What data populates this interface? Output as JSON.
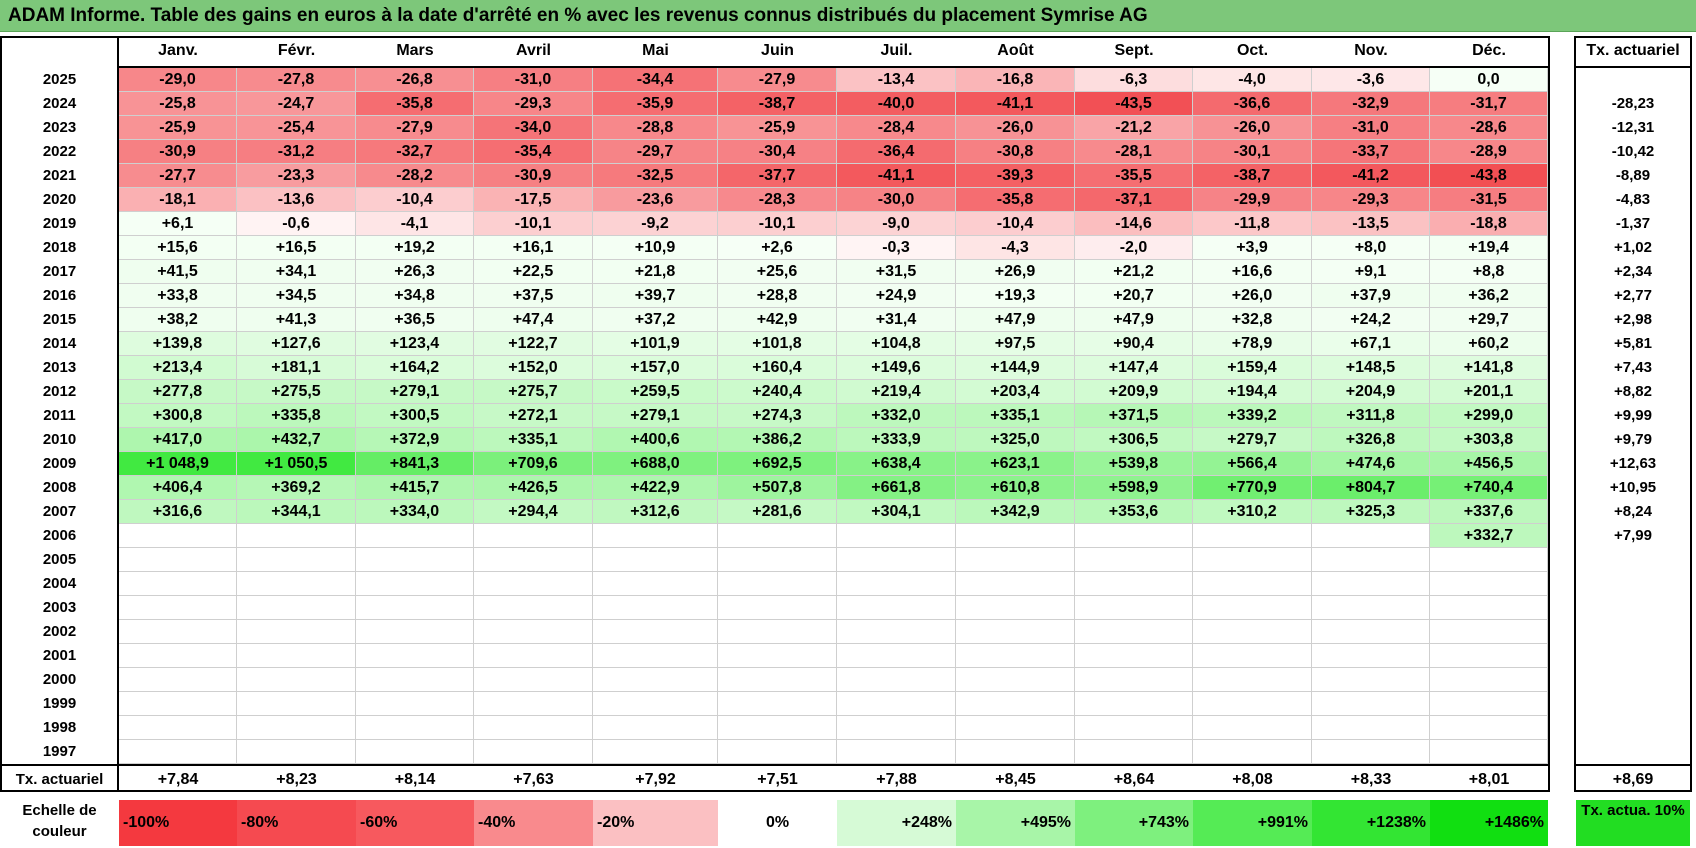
{
  "title": "ADAM Informe. Table des gains en euros à la date d'arrêté en % avec les revenus connus distribués du placement Symrise AG",
  "months": [
    "Janv.",
    "Févr.",
    "Mars",
    "Avril",
    "Mai",
    "Juin",
    "Juil.",
    "Août",
    "Sept.",
    "Oct.",
    "Nov.",
    "Déc."
  ],
  "rate_header": "Tx. actuariel",
  "rows": [
    {
      "year": "2025",
      "values": [
        "-29,0",
        "-27,8",
        "-26,8",
        "-31,0",
        "-34,4",
        "-27,9",
        "-13,4",
        "-16,8",
        "-6,3",
        "-4,0",
        "-3,6",
        "0,0"
      ],
      "rate": ""
    },
    {
      "year": "2024",
      "values": [
        "-25,8",
        "-24,7",
        "-35,8",
        "-29,3",
        "-35,9",
        "-38,7",
        "-40,0",
        "-41,1",
        "-43,5",
        "-36,6",
        "-32,9",
        "-31,7"
      ],
      "rate": "-28,23"
    },
    {
      "year": "2023",
      "values": [
        "-25,9",
        "-25,4",
        "-27,9",
        "-34,0",
        "-28,8",
        "-25,9",
        "-28,4",
        "-26,0",
        "-21,2",
        "-26,0",
        "-31,0",
        "-28,6"
      ],
      "rate": "-12,31"
    },
    {
      "year": "2022",
      "values": [
        "-30,9",
        "-31,2",
        "-32,7",
        "-35,4",
        "-29,7",
        "-30,4",
        "-36,4",
        "-30,8",
        "-28,1",
        "-30,1",
        "-33,7",
        "-28,9"
      ],
      "rate": "-10,42"
    },
    {
      "year": "2021",
      "values": [
        "-27,7",
        "-23,3",
        "-28,2",
        "-30,9",
        "-32,5",
        "-37,7",
        "-41,1",
        "-39,3",
        "-35,5",
        "-38,7",
        "-41,2",
        "-43,8"
      ],
      "rate": "-8,89"
    },
    {
      "year": "2020",
      "values": [
        "-18,1",
        "-13,6",
        "-10,4",
        "-17,5",
        "-23,6",
        "-28,3",
        "-30,0",
        "-35,8",
        "-37,1",
        "-29,9",
        "-29,3",
        "-31,5"
      ],
      "rate": "-4,83"
    },
    {
      "year": "2019",
      "values": [
        "+6,1",
        "-0,6",
        "-4,1",
        "-10,1",
        "-9,2",
        "-10,1",
        "-9,0",
        "-10,4",
        "-14,6",
        "-11,8",
        "-13,5",
        "-18,8"
      ],
      "rate": "-1,37"
    },
    {
      "year": "2018",
      "values": [
        "+15,6",
        "+16,5",
        "+19,2",
        "+16,1",
        "+10,9",
        "+2,6",
        "-0,3",
        "-4,3",
        "-2,0",
        "+3,9",
        "+8,0",
        "+19,4"
      ],
      "rate": "+1,02"
    },
    {
      "year": "2017",
      "values": [
        "+41,5",
        "+34,1",
        "+26,3",
        "+22,5",
        "+21,8",
        "+25,6",
        "+31,5",
        "+26,9",
        "+21,2",
        "+16,6",
        "+9,1",
        "+8,8"
      ],
      "rate": "+2,34"
    },
    {
      "year": "2016",
      "values": [
        "+33,8",
        "+34,5",
        "+34,8",
        "+37,5",
        "+39,7",
        "+28,8",
        "+24,9",
        "+19,3",
        "+20,7",
        "+26,0",
        "+37,9",
        "+36,2"
      ],
      "rate": "+2,77"
    },
    {
      "year": "2015",
      "values": [
        "+38,2",
        "+41,3",
        "+36,5",
        "+47,4",
        "+37,2",
        "+42,9",
        "+31,4",
        "+47,9",
        "+47,9",
        "+32,8",
        "+24,2",
        "+29,7"
      ],
      "rate": "+2,98"
    },
    {
      "year": "2014",
      "values": [
        "+139,8",
        "+127,6",
        "+123,4",
        "+122,7",
        "+101,9",
        "+101,8",
        "+104,8",
        "+97,5",
        "+90,4",
        "+78,9",
        "+67,1",
        "+60,2"
      ],
      "rate": "+5,81"
    },
    {
      "year": "2013",
      "values": [
        "+213,4",
        "+181,1",
        "+164,2",
        "+152,0",
        "+157,0",
        "+160,4",
        "+149,6",
        "+144,9",
        "+147,4",
        "+159,4",
        "+148,5",
        "+141,8"
      ],
      "rate": "+7,43"
    },
    {
      "year": "2012",
      "values": [
        "+277,8",
        "+275,5",
        "+279,1",
        "+275,7",
        "+259,5",
        "+240,4",
        "+219,4",
        "+203,4",
        "+209,9",
        "+194,4",
        "+204,9",
        "+201,1"
      ],
      "rate": "+8,82"
    },
    {
      "year": "2011",
      "values": [
        "+300,8",
        "+335,8",
        "+300,5",
        "+272,1",
        "+279,1",
        "+274,3",
        "+332,0",
        "+335,1",
        "+371,5",
        "+339,2",
        "+311,8",
        "+299,0"
      ],
      "rate": "+9,99"
    },
    {
      "year": "2010",
      "values": [
        "+417,0",
        "+432,7",
        "+372,9",
        "+335,1",
        "+400,6",
        "+386,2",
        "+333,9",
        "+325,0",
        "+306,5",
        "+279,7",
        "+326,8",
        "+303,8"
      ],
      "rate": "+9,79"
    },
    {
      "year": "2009",
      "values": [
        "+1 048,9",
        "+1 050,5",
        "+841,3",
        "+709,6",
        "+688,0",
        "+692,5",
        "+638,4",
        "+623,1",
        "+539,8",
        "+566,4",
        "+474,6",
        "+456,5"
      ],
      "rate": "+12,63"
    },
    {
      "year": "2008",
      "values": [
        "+406,4",
        "+369,2",
        "+415,7",
        "+426,5",
        "+422,9",
        "+507,8",
        "+661,8",
        "+610,8",
        "+598,9",
        "+770,9",
        "+804,7",
        "+740,4"
      ],
      "rate": "+10,95"
    },
    {
      "year": "2007",
      "values": [
        "+316,6",
        "+344,1",
        "+334,0",
        "+294,4",
        "+312,6",
        "+281,6",
        "+304,1",
        "+342,9",
        "+353,6",
        "+310,2",
        "+325,3",
        "+337,6"
      ],
      "rate": "+8,24"
    },
    {
      "year": "2006",
      "values": [
        "",
        "",
        "",
        "",
        "",
        "",
        "",
        "",
        "",
        "",
        "",
        "+332,7"
      ],
      "rate": "+7,99"
    },
    {
      "year": "2005",
      "values": [
        "",
        "",
        "",
        "",
        "",
        "",
        "",
        "",
        "",
        "",
        "",
        ""
      ],
      "rate": ""
    },
    {
      "year": "2004",
      "values": [
        "",
        "",
        "",
        "",
        "",
        "",
        "",
        "",
        "",
        "",
        "",
        ""
      ],
      "rate": ""
    },
    {
      "year": "2003",
      "values": [
        "",
        "",
        "",
        "",
        "",
        "",
        "",
        "",
        "",
        "",
        "",
        ""
      ],
      "rate": ""
    },
    {
      "year": "2002",
      "values": [
        "",
        "",
        "",
        "",
        "",
        "",
        "",
        "",
        "",
        "",
        "",
        ""
      ],
      "rate": ""
    },
    {
      "year": "2001",
      "values": [
        "",
        "",
        "",
        "",
        "",
        "",
        "",
        "",
        "",
        "",
        "",
        ""
      ],
      "rate": ""
    },
    {
      "year": "2000",
      "values": [
        "",
        "",
        "",
        "",
        "",
        "",
        "",
        "",
        "",
        "",
        "",
        ""
      ],
      "rate": ""
    },
    {
      "year": "1999",
      "values": [
        "",
        "",
        "",
        "",
        "",
        "",
        "",
        "",
        "",
        "",
        "",
        ""
      ],
      "rate": ""
    },
    {
      "year": "1998",
      "values": [
        "",
        "",
        "",
        "",
        "",
        "",
        "",
        "",
        "",
        "",
        "",
        ""
      ],
      "rate": ""
    },
    {
      "year": "1997",
      "values": [
        "",
        "",
        "",
        "",
        "",
        "",
        "",
        "",
        "",
        "",
        "",
        ""
      ],
      "rate": ""
    }
  ],
  "footer": {
    "label": "Tx. actuariel",
    "values": [
      "+7,84",
      "+8,23",
      "+8,14",
      "+7,63",
      "+7,92",
      "+7,51",
      "+7,88",
      "+8,45",
      "+8,64",
      "+8,08",
      "+8,33",
      "+8,01"
    ],
    "rate": "+8,69"
  },
  "scale": {
    "label": "Echelle de couleur",
    "items": [
      {
        "text": "-100%",
        "color": "#f4393f"
      },
      {
        "text": "-80%",
        "color": "#f54a50"
      },
      {
        "text": "-60%",
        "color": "#f7595e"
      },
      {
        "text": "-40%",
        "color": "#f98a8d"
      },
      {
        "text": "-20%",
        "color": "#fbc0c2"
      },
      {
        "text": "0%",
        "color": "#ffffff"
      },
      {
        "text": "+248%",
        "color": "#d6fad6"
      },
      {
        "text": "+495%",
        "color": "#a8f5a8"
      },
      {
        "text": "+743%",
        "color": "#7ef07e"
      },
      {
        "text": "+991%",
        "color": "#55eb55"
      },
      {
        "text": "+1238%",
        "color": "#33e533"
      },
      {
        "text": "+1486%",
        "color": "#11df11"
      }
    ],
    "rate_label": "Tx. actua. 10%",
    "rate_color": "#22dd22"
  }
}
